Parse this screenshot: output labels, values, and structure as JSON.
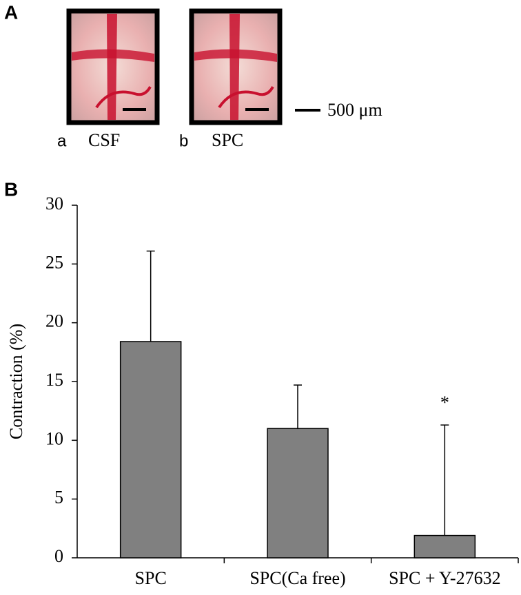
{
  "panel_a": {
    "label": "A",
    "images": [
      {
        "letter": "a",
        "caption": "CSF"
      },
      {
        "letter": "b",
        "caption": "SPC"
      }
    ],
    "scale_bar": "500 μm"
  },
  "panel_b_label": "B",
  "chart_data": {
    "type": "bar",
    "y_label": "Contraction (%)",
    "categories": [
      "SPC",
      "SPC(Ca free)",
      "SPC + Y-27632"
    ],
    "values": [
      18.4,
      11.0,
      1.9
    ],
    "errors": [
      7.7,
      3.7,
      9.4
    ],
    "significance": [
      null,
      null,
      "*"
    ],
    "color": "#808080",
    "ylim": [
      0,
      30
    ],
    "yticks": [
      0,
      5,
      10,
      15,
      20,
      25,
      30
    ],
    "grid": false
  }
}
